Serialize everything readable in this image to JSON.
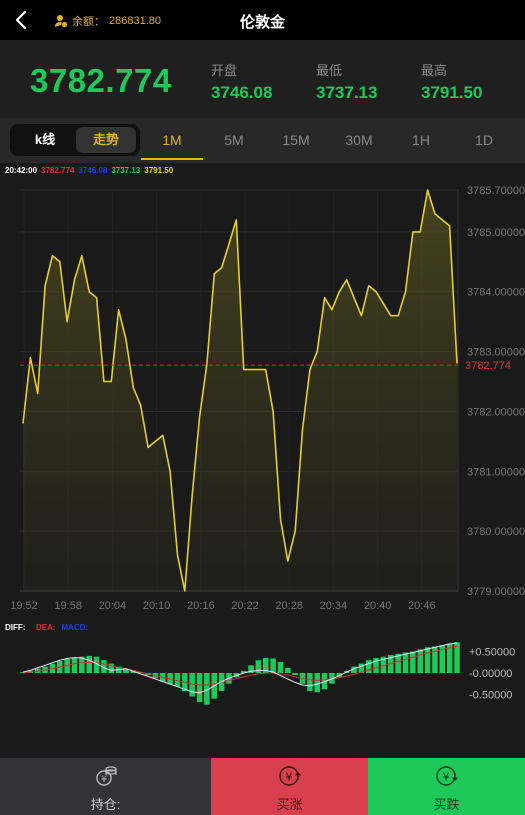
{
  "header": {
    "title": "伦敦金",
    "balance_label": "余额：",
    "balance_value": "286831.80"
  },
  "quote": {
    "current": "3782.774",
    "open_label": "开盘",
    "open": "3746.08",
    "low_label": "最低",
    "low": "3737.13",
    "high_label": "最高",
    "high": "3791.50"
  },
  "tabs": {
    "kline": "k线",
    "trend": "走势",
    "timeframes": [
      "1M",
      "5M",
      "15M",
      "30M",
      "1H",
      "1D"
    ],
    "active": "1M"
  },
  "legend": {
    "time": "20:42:00",
    "v1": "3782.774",
    "v2": "3746.08",
    "v3": "3737.13",
    "v4": "3791.50"
  },
  "colors": {
    "up": "#1ec95a",
    "accent": "#e0b22c",
    "line": "#e6cf2c",
    "sell": "#d9404e"
  },
  "chart_data": {
    "type": "line",
    "x_ticks": [
      "19:52",
      "19:58",
      "20:04",
      "20:10",
      "20:16",
      "20:22",
      "20:28",
      "20:34",
      "20:40",
      "20:46"
    ],
    "y_ticks": [
      "3785.70000",
      "3785.00000",
      "3784.00000",
      "3783.00000",
      "3782.00000",
      "3781.00000",
      "3780.00000",
      "3779.00000"
    ],
    "ylim": [
      3779.0,
      3785.7
    ],
    "current_price_label": "3782.774",
    "current_price": 3782.774,
    "series": [
      {
        "values": [
          3781.8,
          3782.9,
          3782.3,
          3784.1,
          3784.6,
          3784.5,
          3783.5,
          3784.2,
          3784.6,
          3784.0,
          3783.9,
          3782.5,
          3782.5,
          3783.7,
          3783.2,
          3782.4,
          3782.1,
          3781.4,
          3781.5,
          3781.6,
          3781.0,
          3779.6,
          3779.0,
          3780.6,
          3781.9,
          3782.8,
          3784.3,
          3784.4,
          3784.8,
          3785.2,
          3782.7,
          3782.7,
          3782.7,
          3782.7,
          3782.0,
          3780.2,
          3779.5,
          3780.0,
          3781.7,
          3782.7,
          3783.0,
          3783.9,
          3783.7,
          3784.0,
          3784.2,
          3783.9,
          3783.6,
          3784.1,
          3784.0,
          3783.8,
          3783.6,
          3783.6,
          3784.0,
          3785.0,
          3785.0,
          3785.7,
          3785.3,
          3785.2,
          3785.1,
          3782.8
        ]
      }
    ],
    "macd": {
      "labels": [
        "DIFF:",
        "DEA:",
        "MACD:"
      ],
      "y_ticks": [
        "+0.50000",
        "-0.00000",
        "-0.50000"
      ],
      "ylim": [
        -0.9,
        0.9
      ],
      "bars": [
        0.02,
        0.05,
        0.1,
        0.15,
        0.22,
        0.28,
        0.33,
        0.36,
        0.38,
        0.4,
        0.38,
        0.3,
        0.22,
        0.15,
        0.1,
        0.05,
        0.02,
        -0.05,
        -0.12,
        -0.2,
        -0.26,
        -0.32,
        -0.42,
        -0.55,
        -0.68,
        -0.74,
        -0.6,
        -0.42,
        -0.25,
        -0.1,
        0.05,
        0.18,
        0.3,
        0.35,
        0.34,
        0.26,
        0.12,
        -0.05,
        -0.25,
        -0.42,
        -0.45,
        -0.38,
        -0.25,
        -0.1,
        0.05,
        0.15,
        0.22,
        0.3,
        0.35,
        0.38,
        0.42,
        0.45,
        0.48,
        0.5,
        0.55,
        0.6,
        0.62,
        0.65,
        0.68,
        0.72
      ],
      "diff": [
        0.02,
        0.06,
        0.12,
        0.18,
        0.24,
        0.3,
        0.34,
        0.36,
        0.35,
        0.3,
        0.22,
        0.12,
        0.06,
        0.08,
        0.1,
        0.04,
        -0.02,
        -0.08,
        -0.14,
        -0.2,
        -0.26,
        -0.32,
        -0.38,
        -0.44,
        -0.46,
        -0.4,
        -0.3,
        -0.2,
        -0.12,
        -0.06,
        0.0,
        0.04,
        0.06,
        0.06,
        0.02,
        -0.06,
        -0.14,
        -0.22,
        -0.28,
        -0.3,
        -0.26,
        -0.2,
        -0.14,
        -0.06,
        0.02,
        0.1,
        0.16,
        0.22,
        0.28,
        0.32,
        0.36,
        0.4,
        0.44,
        0.48,
        0.52,
        0.56,
        0.6,
        0.64,
        0.68,
        0.7
      ],
      "dea": [
        0.0,
        0.02,
        0.04,
        0.07,
        0.1,
        0.14,
        0.18,
        0.22,
        0.24,
        0.25,
        0.24,
        0.21,
        0.17,
        0.13,
        0.1,
        0.06,
        0.02,
        -0.02,
        -0.06,
        -0.1,
        -0.14,
        -0.18,
        -0.22,
        -0.26,
        -0.28,
        -0.28,
        -0.26,
        -0.22,
        -0.18,
        -0.13,
        -0.09,
        -0.05,
        -0.02,
        0.0,
        0.0,
        -0.02,
        -0.05,
        -0.09,
        -0.13,
        -0.16,
        -0.17,
        -0.16,
        -0.14,
        -0.11,
        -0.07,
        -0.03,
        0.02,
        0.07,
        0.12,
        0.17,
        0.22,
        0.27,
        0.32,
        0.37,
        0.42,
        0.47,
        0.51,
        0.55,
        0.59,
        0.63
      ]
    }
  },
  "footer": {
    "position_label": "持仓:",
    "buy_up": "买涨",
    "buy_down": "买跌"
  }
}
